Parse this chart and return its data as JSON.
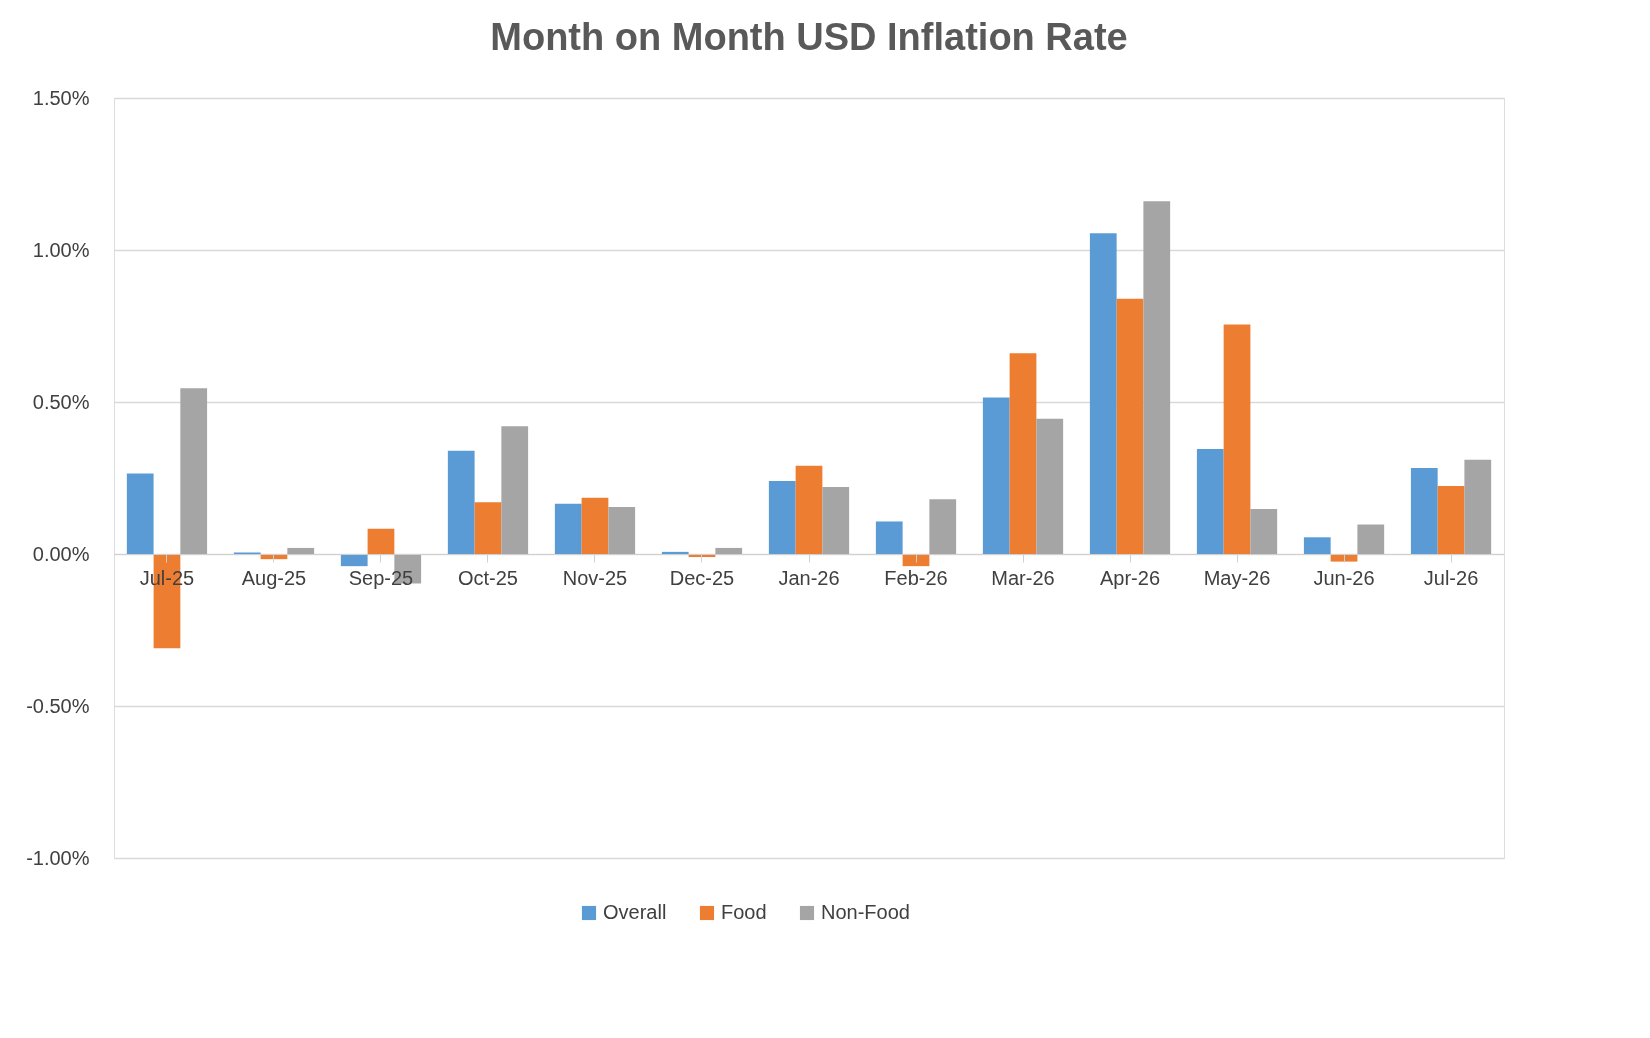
{
  "chart_data": {
    "type": "bar",
    "title": "Month on Month USD Inflation Rate",
    "categories": [
      "Jul-25",
      "Aug-25",
      "Sep-25",
      "Oct-25",
      "Nov-25",
      "Dec-25",
      "Jan-26",
      "Feb-26",
      "Mar-26",
      "Apr-26",
      "May-26",
      "Jun-26",
      "Jul-26"
    ],
    "series": [
      {
        "name": "Overall",
        "color": "#5b9bd5",
        "values": [
          0.265,
          0.005,
          -0.04,
          0.34,
          0.165,
          0.007,
          0.24,
          0.107,
          0.515,
          1.055,
          0.345,
          0.055,
          0.283
        ]
      },
      {
        "name": "Food",
        "color": "#ed7d31",
        "values": [
          -0.31,
          -0.017,
          0.083,
          0.17,
          0.185,
          -0.01,
          0.29,
          -0.04,
          0.66,
          0.84,
          0.755,
          -0.025,
          0.224
        ]
      },
      {
        "name": "Non-Food",
        "color": "#a5a5a5",
        "values": [
          0.545,
          0.02,
          -0.097,
          0.42,
          0.155,
          0.02,
          0.22,
          0.18,
          0.445,
          1.16,
          0.148,
          0.097,
          0.31
        ]
      }
    ],
    "ylim": [
      -1.0,
      1.5
    ],
    "yticks": [
      {
        "value": -1.0,
        "label": "-1.00%"
      },
      {
        "value": -0.5,
        "label": "-0.50%"
      },
      {
        "value": 0,
        "label": "0.00%"
      },
      {
        "value": 0.5,
        "label": "0.50%"
      },
      {
        "value": 1.0,
        "label": "1.00%"
      },
      {
        "value": 1.5,
        "label": "1.50%"
      }
    ],
    "grid": "y",
    "legend": "bottom"
  }
}
